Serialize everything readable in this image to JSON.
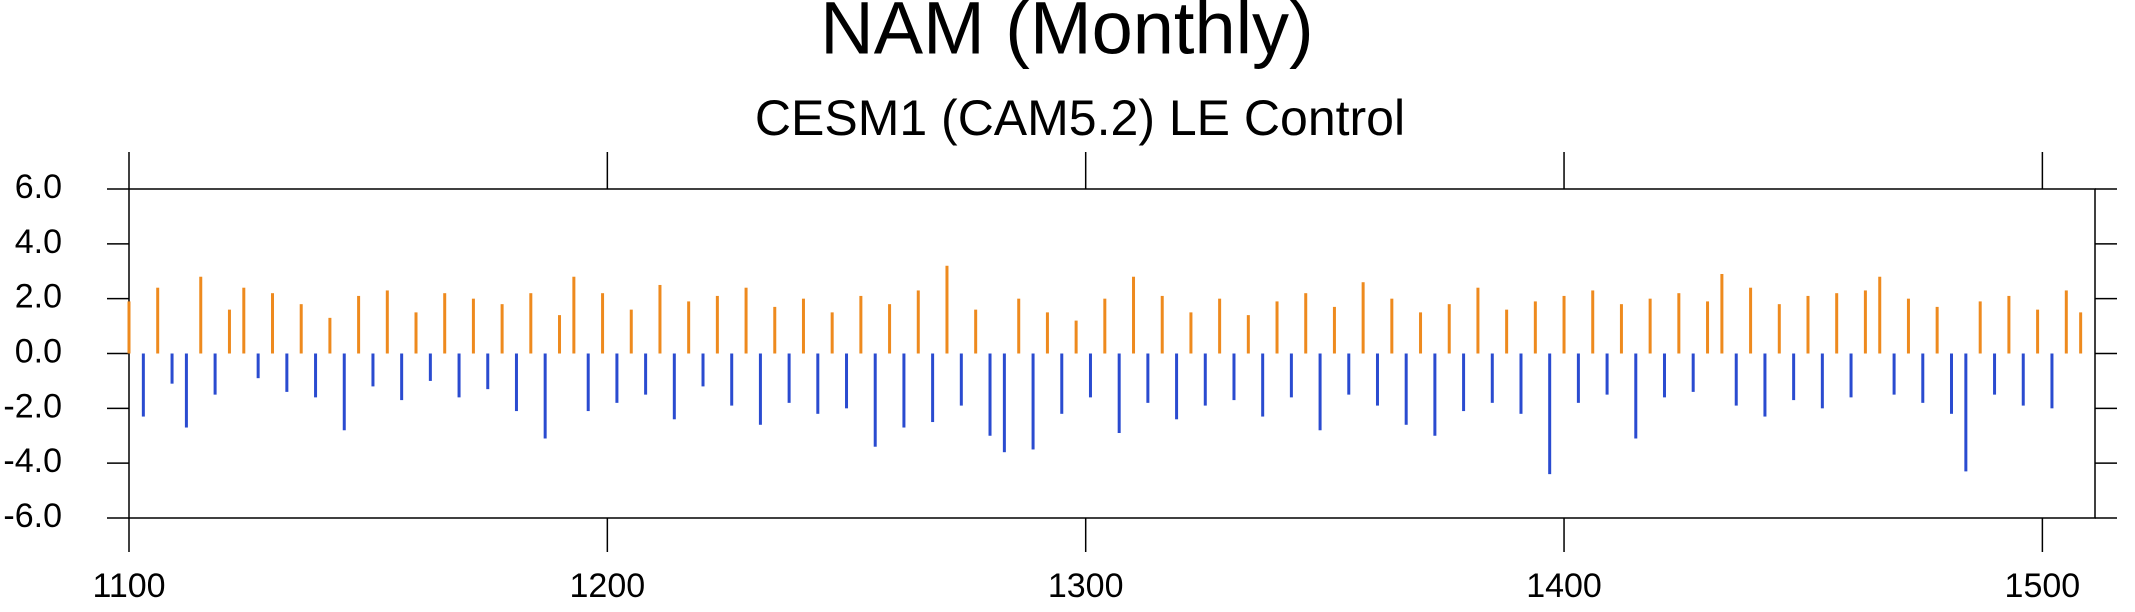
{
  "chart_data": {
    "type": "bar",
    "title": "NAM (Monthly)",
    "subtitle": "CESM1 (CAM5.2) LE Control",
    "x": [
      1100,
      1103,
      1106,
      1109,
      1112,
      1115,
      1118,
      1121,
      1124,
      1127,
      1130,
      1133,
      1136,
      1139,
      1142,
      1145,
      1148,
      1151,
      1154,
      1157,
      1160,
      1163,
      1166,
      1169,
      1172,
      1175,
      1178,
      1181,
      1184,
      1187,
      1190,
      1193,
      1196,
      1199,
      1202,
      1205,
      1208,
      1211,
      1214,
      1217,
      1220,
      1223,
      1226,
      1229,
      1232,
      1235,
      1238,
      1241,
      1244,
      1247,
      1250,
      1253,
      1256,
      1259,
      1262,
      1265,
      1268,
      1271,
      1274,
      1277,
      1280,
      1283,
      1286,
      1289,
      1292,
      1295,
      1298,
      1301,
      1304,
      1307,
      1310,
      1313,
      1316,
      1319,
      1322,
      1325,
      1328,
      1331,
      1334,
      1337,
      1340,
      1343,
      1346,
      1349,
      1352,
      1355,
      1358,
      1361,
      1364,
      1367,
      1370,
      1373,
      1376,
      1379,
      1382,
      1385,
      1388,
      1391,
      1394,
      1397,
      1400,
      1403,
      1406,
      1409,
      1412,
      1415,
      1418,
      1421,
      1424,
      1427,
      1430,
      1433,
      1436,
      1439,
      1442,
      1445,
      1448,
      1451,
      1454,
      1457,
      1460,
      1463,
      1466,
      1469,
      1472,
      1475,
      1478,
      1481,
      1484,
      1487,
      1490,
      1493,
      1496,
      1499,
      1502,
      1505,
      1508
    ],
    "values": [
      1.9,
      -2.3,
      2.4,
      -1.1,
      -2.7,
      2.8,
      -1.5,
      1.6,
      2.4,
      -0.9,
      2.2,
      -1.4,
      1.8,
      -1.6,
      1.3,
      -2.8,
      2.1,
      -1.2,
      2.3,
      -1.7,
      1.5,
      -1.0,
      2.2,
      -1.6,
      2.0,
      -1.3,
      1.8,
      -2.1,
      2.2,
      -3.1,
      1.4,
      2.8,
      -2.1,
      2.2,
      -1.8,
      1.6,
      -1.5,
      2.5,
      -2.4,
      1.9,
      -1.2,
      2.1,
      -1.9,
      2.4,
      -2.6,
      1.7,
      -1.8,
      2.0,
      -2.2,
      1.5,
      -2.0,
      2.1,
      -3.4,
      1.8,
      -2.7,
      2.3,
      -2.5,
      3.2,
      -1.9,
      1.6,
      -3.0,
      -3.6,
      2.0,
      -3.5,
      1.5,
      -2.2,
      1.2,
      -1.6,
      2.0,
      -2.9,
      2.8,
      -1.8,
      2.1,
      -2.4,
      1.5,
      -1.9,
      2.0,
      -1.7,
      1.4,
      -2.3,
      1.9,
      -1.6,
      2.2,
      -2.8,
      1.7,
      -1.5,
      2.6,
      -1.9,
      2.0,
      -2.6,
      1.5,
      -3.0,
      1.8,
      -2.1,
      2.4,
      -1.8,
      1.6,
      -2.2,
      1.9,
      -4.4,
      2.1,
      -1.8,
      2.3,
      -1.5,
      1.8,
      -3.1,
      2.0,
      -1.6,
      2.2,
      -1.4,
      1.9,
      2.9,
      -1.9,
      2.4,
      -2.3,
      1.8,
      -1.7,
      2.1,
      -2.0,
      2.2,
      -1.6,
      2.3,
      2.8,
      -1.5,
      2.0,
      -1.8,
      1.7,
      -2.2,
      -4.3,
      1.9,
      -1.5,
      2.1,
      -1.9,
      1.6,
      -2.0,
      2.3,
      1.5
    ],
    "color_above": "#ee8a1e",
    "color_below": "#2a4bd0",
    "xlim": [
      1100,
      1511
    ],
    "xticks": [
      1100,
      1200,
      1300,
      1400,
      1500
    ],
    "ylim": [
      -6,
      6
    ],
    "yticks": [
      {
        "value": -6,
        "label": "-6.0"
      },
      {
        "value": -4,
        "label": "-4.0"
      },
      {
        "value": -2,
        "label": "-2.0"
      },
      {
        "value": 0,
        "label": "0.0"
      },
      {
        "value": 2,
        "label": "2.0"
      },
      {
        "value": 4,
        "label": "4.0"
      },
      {
        "value": 6,
        "label": "6.0"
      }
    ],
    "grid": false
  }
}
